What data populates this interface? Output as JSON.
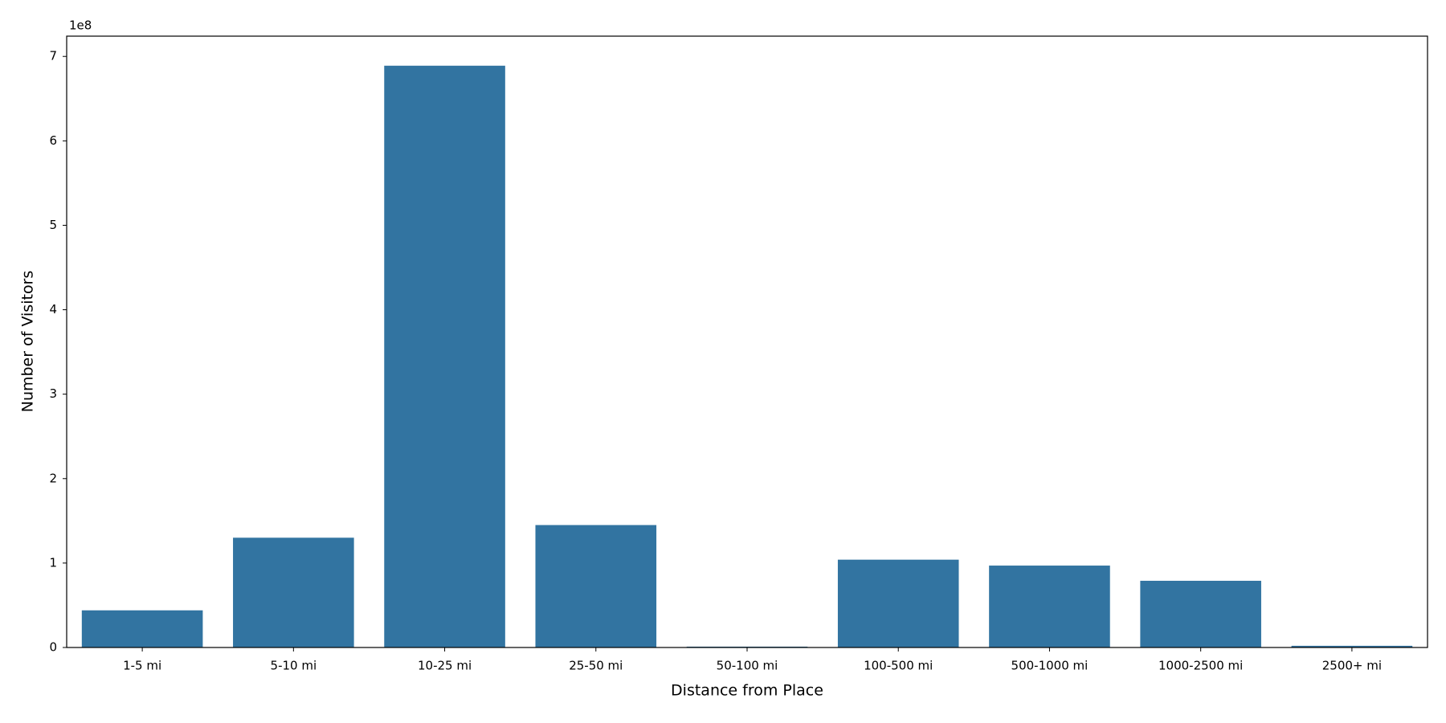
{
  "chart_data": {
    "type": "bar",
    "x_label": "Distance from Place",
    "y_label": "Number of Visitors",
    "y_offset_label": "1e8",
    "categories": [
      "1-5 mi",
      "5-10 mi",
      "10-25 mi",
      "25-50 mi",
      "50-100 mi",
      "100-500 mi",
      "500-1000 mi",
      "1000-2500 mi",
      "2500+ mi"
    ],
    "values": [
      0.44,
      1.3,
      6.89,
      1.45,
      0.01,
      1.04,
      0.97,
      0.79,
      0.02
    ],
    "color": "#3274a1",
    "ylim": [
      0,
      7.24
    ],
    "yticks": [
      0,
      1,
      2,
      3,
      4,
      5,
      6,
      7
    ],
    "grid": false
  }
}
